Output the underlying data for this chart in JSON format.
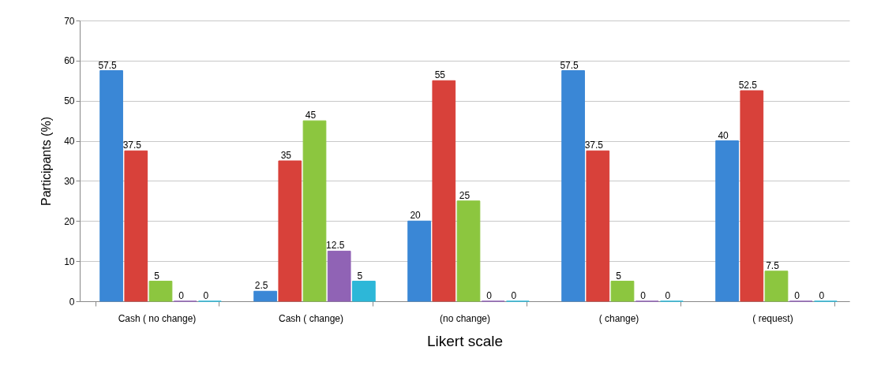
{
  "chart_data": {
    "type": "bar",
    "xlabel": "Likert scale",
    "ylabel": "Participants (%)",
    "categories": [
      "Cash ( no change)",
      "Cash ( change)",
      "(no change)",
      "( change)",
      "( request)"
    ],
    "series": [
      {
        "color": "#3a87d6",
        "values": [
          57.5,
          2.5,
          20,
          57.5,
          40
        ]
      },
      {
        "color": "#d8413a",
        "values": [
          37.5,
          35,
          55,
          37.5,
          52.5
        ]
      },
      {
        "color": "#8cc63f",
        "values": [
          5,
          45,
          25,
          5,
          7.5
        ]
      },
      {
        "color": "#9063b5",
        "values": [
          0,
          12.5,
          0,
          0,
          0
        ]
      },
      {
        "color": "#2db7d8",
        "values": [
          0,
          5,
          0,
          0,
          0
        ]
      }
    ],
    "ylim": [
      0,
      70
    ],
    "yticks": [
      0,
      10,
      20,
      30,
      40,
      50,
      60,
      70
    ],
    "grid": "y",
    "data_labels": true,
    "legend": false
  }
}
